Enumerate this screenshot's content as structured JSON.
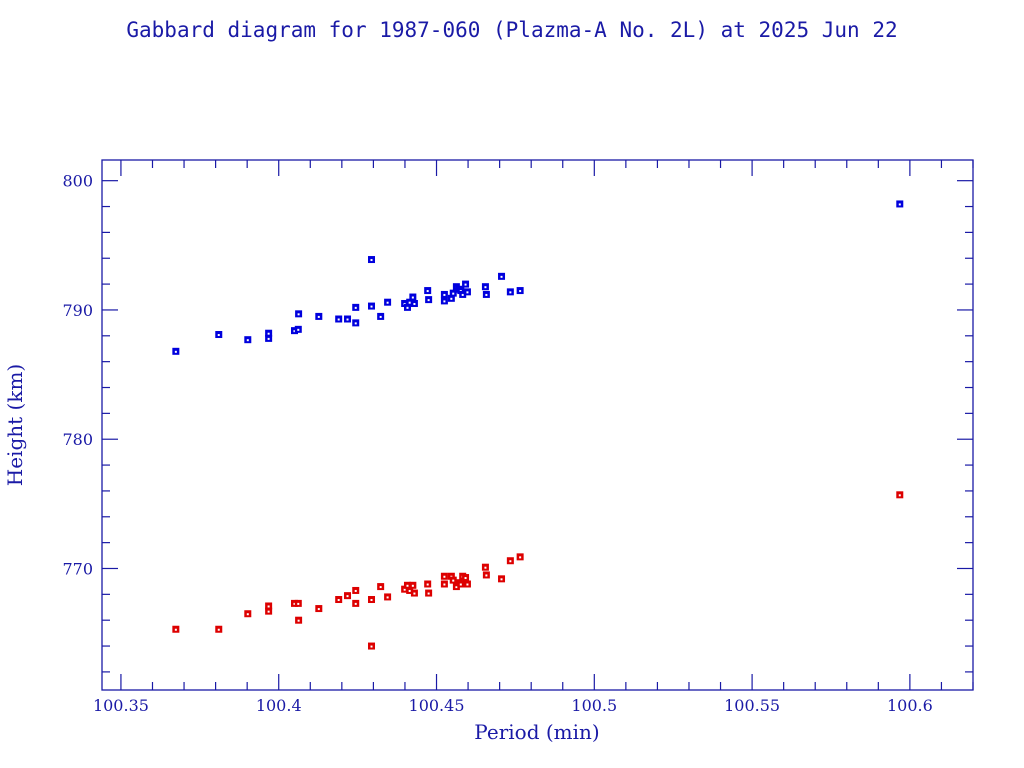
{
  "chart_data": {
    "type": "scatter",
    "title": "Gabbard diagram for 1987-060 (Plazma-A No. 2L) at 2025 Jun 22",
    "xlabel": "Period (min)",
    "ylabel": "Height (km)",
    "xlim": [
      100.344,
      100.62
    ],
    "ylim": [
      760.6,
      801.6
    ],
    "x_ticks": [
      100.35,
      100.4,
      100.45,
      100.5,
      100.55,
      100.6
    ],
    "x_tick_labels": [
      "100.35",
      "100.4",
      "100.45",
      "100.5",
      "100.55",
      "100.6"
    ],
    "x_minor_step": 0.01,
    "y_ticks": [
      770,
      780,
      790,
      800
    ],
    "y_tick_labels": [
      "770",
      "780",
      "790",
      "800"
    ],
    "y_minor_step": 2,
    "grid": false,
    "legend": "none",
    "colors": {
      "axis": "#1a1aa6",
      "apogee": "#0000dd",
      "perigee": "#dd0000"
    },
    "series": [
      {
        "name": "Apogee",
        "color": "#0000dd",
        "points": [
          [
            100.3674,
            786.8
          ],
          [
            100.381,
            788.1
          ],
          [
            100.3902,
            787.7
          ],
          [
            100.3968,
            788.2
          ],
          [
            100.3968,
            787.8
          ],
          [
            100.405,
            788.4
          ],
          [
            100.4062,
            788.5
          ],
          [
            100.4063,
            789.7
          ],
          [
            100.4127,
            789.5
          ],
          [
            100.419,
            789.3
          ],
          [
            100.4218,
            789.3
          ],
          [
            100.4244,
            789.0
          ],
          [
            100.4244,
            790.2
          ],
          [
            100.4294,
            793.9
          ],
          [
            100.4294,
            790.3
          ],
          [
            100.4323,
            789.5
          ],
          [
            100.4345,
            790.6
          ],
          [
            100.4399,
            790.5
          ],
          [
            100.4408,
            790.2
          ],
          [
            100.4415,
            790.6
          ],
          [
            100.4425,
            791.0
          ],
          [
            100.443,
            790.5
          ],
          [
            100.4472,
            791.5
          ],
          [
            100.4475,
            790.8
          ],
          [
            100.4525,
            791.2
          ],
          [
            100.4525,
            790.7
          ],
          [
            100.4547,
            790.9
          ],
          [
            100.4553,
            791.3
          ],
          [
            100.4563,
            791.8
          ],
          [
            100.457,
            791.6
          ],
          [
            100.4577,
            791.5
          ],
          [
            100.4583,
            791.2
          ],
          [
            100.4592,
            792.0
          ],
          [
            100.4598,
            791.4
          ],
          [
            100.4655,
            791.8
          ],
          [
            100.4658,
            791.2
          ],
          [
            100.4706,
            792.6
          ],
          [
            100.4734,
            791.4
          ],
          [
            100.4765,
            791.5
          ],
          [
            100.5968,
            798.2
          ]
        ]
      },
      {
        "name": "Perigee",
        "color": "#dd0000",
        "points": [
          [
            100.3674,
            765.3
          ],
          [
            100.381,
            765.3
          ],
          [
            100.3902,
            766.5
          ],
          [
            100.3968,
            767.1
          ],
          [
            100.3968,
            766.7
          ],
          [
            100.405,
            767.3
          ],
          [
            100.4062,
            767.3
          ],
          [
            100.4063,
            766.0
          ],
          [
            100.4127,
            766.9
          ],
          [
            100.419,
            767.6
          ],
          [
            100.4218,
            767.9
          ],
          [
            100.4244,
            767.3
          ],
          [
            100.4244,
            768.3
          ],
          [
            100.4294,
            767.6
          ],
          [
            100.4294,
            764.0
          ],
          [
            100.4323,
            768.6
          ],
          [
            100.4345,
            767.8
          ],
          [
            100.4399,
            768.4
          ],
          [
            100.4408,
            768.7
          ],
          [
            100.4415,
            768.3
          ],
          [
            100.4425,
            768.7
          ],
          [
            100.443,
            768.1
          ],
          [
            100.4472,
            768.8
          ],
          [
            100.4475,
            768.1
          ],
          [
            100.4525,
            769.4
          ],
          [
            100.4525,
            768.8
          ],
          [
            100.4547,
            769.4
          ],
          [
            100.4553,
            769.1
          ],
          [
            100.4563,
            768.6
          ],
          [
            100.457,
            768.9
          ],
          [
            100.4577,
            768.8
          ],
          [
            100.4583,
            769.4
          ],
          [
            100.4592,
            769.3
          ],
          [
            100.4598,
            768.8
          ],
          [
            100.4655,
            770.1
          ],
          [
            100.4658,
            769.5
          ],
          [
            100.4706,
            769.2
          ],
          [
            100.4734,
            770.6
          ],
          [
            100.4765,
            770.9
          ],
          [
            100.5968,
            775.7
          ]
        ]
      }
    ]
  }
}
